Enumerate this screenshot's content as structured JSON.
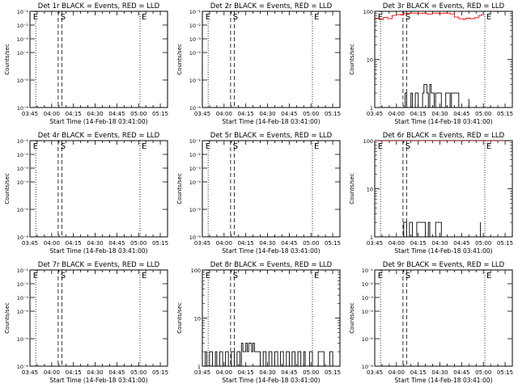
{
  "time_axis": {
    "tick_labels": [
      "03:45",
      "04:00",
      "04:15",
      "04:30",
      "04:45",
      "05:00",
      "05:15"
    ],
    "tick_minutes": [
      0,
      15,
      30,
      45,
      60,
      75,
      90
    ],
    "minor_step_minutes": 5,
    "range_minutes": [
      0,
      95
    ],
    "xlabel": "Start Time (14-Feb-18 03:41:00)",
    "start_clock": "03:45"
  },
  "ylabel": "Counts/sec",
  "colors": {
    "events": "#000000",
    "lld": "#ff0000",
    "frame": "#000000",
    "background": "#ffffff"
  },
  "chart_data": [
    {
      "type": "line",
      "title": "Det 1r BLACK = Events, RED = LLD",
      "yscale": "log",
      "ylim": [
        1e-08,
        0.1
      ],
      "ytick_labels": [
        "10⁻⁸",
        "10⁻⁶",
        "10⁻⁴",
        "10⁻³",
        "10⁻²",
        "10⁻¹"
      ],
      "ytick_values": [
        1e-08,
        1e-06,
        0.0001,
        0.001,
        0.01,
        0.1
      ],
      "dotted_lines_min": [
        4,
        76
      ],
      "dashed_lines_min": [
        19.5,
        22
      ],
      "markers": [
        {
          "label": "E",
          "x_min": 1,
          "y": 0.1
        },
        {
          "label": "S",
          "x_min": 20,
          "y": 0.1
        },
        {
          "label": "E",
          "x_min": 76,
          "y": 0.1
        }
      ],
      "series": []
    },
    {
      "type": "line",
      "title": "Det 2r BLACK = Events, RED = LLD",
      "yscale": "log",
      "ylim": [
        1e-08,
        0.1
      ],
      "ytick_labels": [
        "10⁻⁸",
        "10⁻⁶",
        "10⁻⁴",
        "10⁻³",
        "10⁻²",
        "10⁻¹"
      ],
      "ytick_values": [
        1e-08,
        1e-06,
        0.0001,
        0.001,
        0.01,
        0.1
      ],
      "dotted_lines_min": [
        4,
        76
      ],
      "dashed_lines_min": [
        19.5,
        22
      ],
      "markers": [
        {
          "label": "E",
          "x_min": 1,
          "y": 0.1
        },
        {
          "label": "S",
          "x_min": 20,
          "y": 0.1
        },
        {
          "label": "E",
          "x_min": 76,
          "y": 0.1
        }
      ],
      "series": []
    },
    {
      "type": "line",
      "title": "Det 3r BLACK = Events, RED = LLD",
      "yscale": "log",
      "ylim": [
        1,
        100
      ],
      "ytick_labels": [
        "1",
        "10",
        "100"
      ],
      "ytick_values": [
        1,
        10,
        100
      ],
      "dotted_lines_min": [
        4,
        76
      ],
      "dashed_lines_min": [
        19.5,
        22
      ],
      "markers": [
        {
          "label": "E",
          "x_min": 1,
          "y": 100
        },
        {
          "label": "S",
          "x_min": 20,
          "y": 100
        },
        {
          "label": "E",
          "x_min": 76,
          "y": 100
        }
      ],
      "series": [
        {
          "style": "lld",
          "x": [
            0,
            3,
            6,
            9,
            12,
            15,
            18,
            20,
            24,
            27,
            30,
            33,
            36,
            40,
            44,
            48,
            52,
            55,
            58,
            61,
            63,
            66,
            69,
            72,
            74
          ],
          "y": [
            72,
            68,
            75,
            70,
            82,
            86,
            84,
            90,
            92,
            92,
            90,
            92,
            88,
            92,
            90,
            92,
            88,
            76,
            70,
            68,
            72,
            70,
            74,
            82,
            90
          ]
        },
        {
          "style": "events",
          "x": [
            19,
            21,
            22,
            24,
            25,
            26,
            28,
            30,
            31,
            33,
            34,
            36,
            37,
            38,
            39,
            41,
            42,
            44,
            46,
            49,
            52,
            53,
            58,
            64,
            65
          ],
          "y": [
            1,
            2,
            1,
            1,
            2,
            1,
            2,
            1,
            1,
            2,
            3,
            2,
            1,
            3,
            2,
            1,
            2,
            2,
            1,
            2,
            1,
            2,
            1,
            1,
            1.5
          ]
        }
      ]
    },
    {
      "type": "line",
      "title": "Det 4r BLACK = Events, RED = LLD",
      "yscale": "log",
      "ylim": [
        1e-08,
        0.1
      ],
      "ytick_labels": [
        "10⁻⁸",
        "10⁻⁶",
        "10⁻⁴",
        "10⁻³",
        "10⁻²",
        "10⁻¹"
      ],
      "ytick_values": [
        1e-08,
        1e-06,
        0.0001,
        0.001,
        0.01,
        0.1
      ],
      "dotted_lines_min": [
        4,
        76
      ],
      "dashed_lines_min": [
        19.5,
        22
      ],
      "markers": [
        {
          "label": "E",
          "x_min": 1,
          "y": 0.1
        },
        {
          "label": "S",
          "x_min": 20,
          "y": 0.1
        },
        {
          "label": "E",
          "x_min": 76,
          "y": 0.1
        }
      ],
      "series": []
    },
    {
      "type": "line",
      "title": "Det 5r BLACK = Events, RED = LLD",
      "yscale": "log",
      "ylim": [
        1e-08,
        0.1
      ],
      "ytick_labels": [
        "10⁻⁸",
        "10⁻⁶",
        "10⁻⁴",
        "10⁻³",
        "10⁻²",
        "10⁻¹"
      ],
      "ytick_values": [
        1e-08,
        1e-06,
        0.0001,
        0.001,
        0.01,
        0.1
      ],
      "dotted_lines_min": [
        4,
        76
      ],
      "dashed_lines_min": [
        19.5,
        22
      ],
      "markers": [
        {
          "label": "E",
          "x_min": 1,
          "y": 0.1
        },
        {
          "label": "S",
          "x_min": 20,
          "y": 0.1
        },
        {
          "label": "E",
          "x_min": 76,
          "y": 0.1
        }
      ],
      "series": []
    },
    {
      "type": "line",
      "title": "Det 6r BLACK = Events, RED = LLD",
      "yscale": "log",
      "ylim": [
        1,
        100
      ],
      "ytick_labels": [
        "1",
        "10",
        "100"
      ],
      "ytick_values": [
        1,
        10,
        100
      ],
      "dotted_lines_min": [
        4,
        76
      ],
      "dashed_lines_min": [
        19.5,
        22
      ],
      "markers": [
        {
          "label": "E",
          "x_min": 1,
          "y": 100
        },
        {
          "label": "S",
          "x_min": 20,
          "y": 100
        },
        {
          "label": "E",
          "x_min": 76,
          "y": 100
        }
      ],
      "series": [
        {
          "style": "lld",
          "x": [
            0,
            10,
            20,
            30,
            40,
            50,
            60,
            70,
            80,
            90
          ],
          "y": [
            100,
            100,
            100,
            100,
            100,
            100,
            100,
            100,
            100,
            100
          ]
        },
        {
          "style": "events",
          "x": [
            19,
            20,
            22,
            24,
            26,
            28,
            29,
            31,
            33,
            35,
            37,
            38,
            40,
            42,
            44,
            46,
            48,
            50,
            72,
            73
          ],
          "y": [
            1,
            2,
            1,
            2,
            1,
            1,
            2,
            2,
            2,
            1,
            2,
            1,
            1,
            2,
            2,
            1,
            1,
            1,
            1,
            2
          ]
        }
      ]
    },
    {
      "type": "line",
      "title": "Det 7r BLACK = Events, RED = LLD",
      "yscale": "log",
      "ylim": [
        1e-08,
        0.1
      ],
      "ytick_labels": [
        "10⁻⁸",
        "10⁻⁶",
        "10⁻⁴",
        "10⁻³",
        "10⁻²",
        "10⁻¹"
      ],
      "ytick_values": [
        1e-08,
        1e-06,
        0.0001,
        0.001,
        0.01,
        0.1
      ],
      "dotted_lines_min": [
        4,
        76
      ],
      "dashed_lines_min": [
        19.5,
        22
      ],
      "markers": [
        {
          "label": "E",
          "x_min": 1,
          "y": 0.1
        },
        {
          "label": "S",
          "x_min": 20,
          "y": 0.1
        },
        {
          "label": "E",
          "x_min": 76,
          "y": 0.1
        }
      ],
      "series": []
    },
    {
      "type": "line",
      "title": "Det 8r BLACK = Events, RED = LLD",
      "yscale": "log",
      "ylim": [
        1,
        100
      ],
      "ytick_labels": [
        "1",
        "10",
        "100"
      ],
      "ytick_values": [
        1,
        10,
        100
      ],
      "dotted_lines_min": [
        4,
        76
      ],
      "dashed_lines_min": [
        19.5,
        22
      ],
      "markers": [
        {
          "label": "E",
          "x_min": 1,
          "y": 100
        },
        {
          "label": "S",
          "x_min": 20,
          "y": 100
        },
        {
          "label": "E",
          "x_min": 76,
          "y": 100
        }
      ],
      "series": [
        {
          "style": "events",
          "x": [
            0,
            2,
            3,
            5,
            7,
            9,
            10,
            12,
            14,
            16,
            18,
            20,
            22,
            24,
            26,
            27,
            28,
            30,
            31,
            32,
            34,
            35,
            36,
            38,
            40,
            42,
            44,
            46,
            48,
            50,
            52,
            54,
            56,
            58,
            60,
            62,
            64,
            66,
            68,
            70,
            71,
            74,
            76,
            80,
            84,
            88,
            90
          ],
          "y": [
            1,
            2,
            1,
            2,
            1,
            2,
            1,
            2,
            1,
            2,
            1,
            2,
            1,
            2,
            1,
            3,
            2,
            3,
            2,
            3,
            2,
            3,
            2,
            2,
            1,
            2,
            1,
            2,
            1,
            2,
            1,
            2,
            1,
            2,
            1,
            2,
            1,
            2,
            1,
            2,
            1,
            2,
            1,
            2,
            1,
            2,
            1
          ]
        }
      ]
    },
    {
      "type": "line",
      "title": "Det 9r BLACK = Events, RED = LLD",
      "yscale": "log",
      "ylim": [
        1e-08,
        0.1
      ],
      "ytick_labels": [
        "10⁻⁸",
        "10⁻⁶",
        "10⁻⁴",
        "10⁻³",
        "10⁻²",
        "10⁻¹"
      ],
      "ytick_values": [
        1e-08,
        1e-06,
        0.0001,
        0.001,
        0.01,
        0.1
      ],
      "dotted_lines_min": [
        4,
        76
      ],
      "dashed_lines_min": [
        19.5,
        22
      ],
      "markers": [
        {
          "label": "E",
          "x_min": 1,
          "y": 0.1
        },
        {
          "label": "S",
          "x_min": 20,
          "y": 0.1
        },
        {
          "label": "E",
          "x_min": 76,
          "y": 0.1
        }
      ],
      "series": []
    }
  ]
}
